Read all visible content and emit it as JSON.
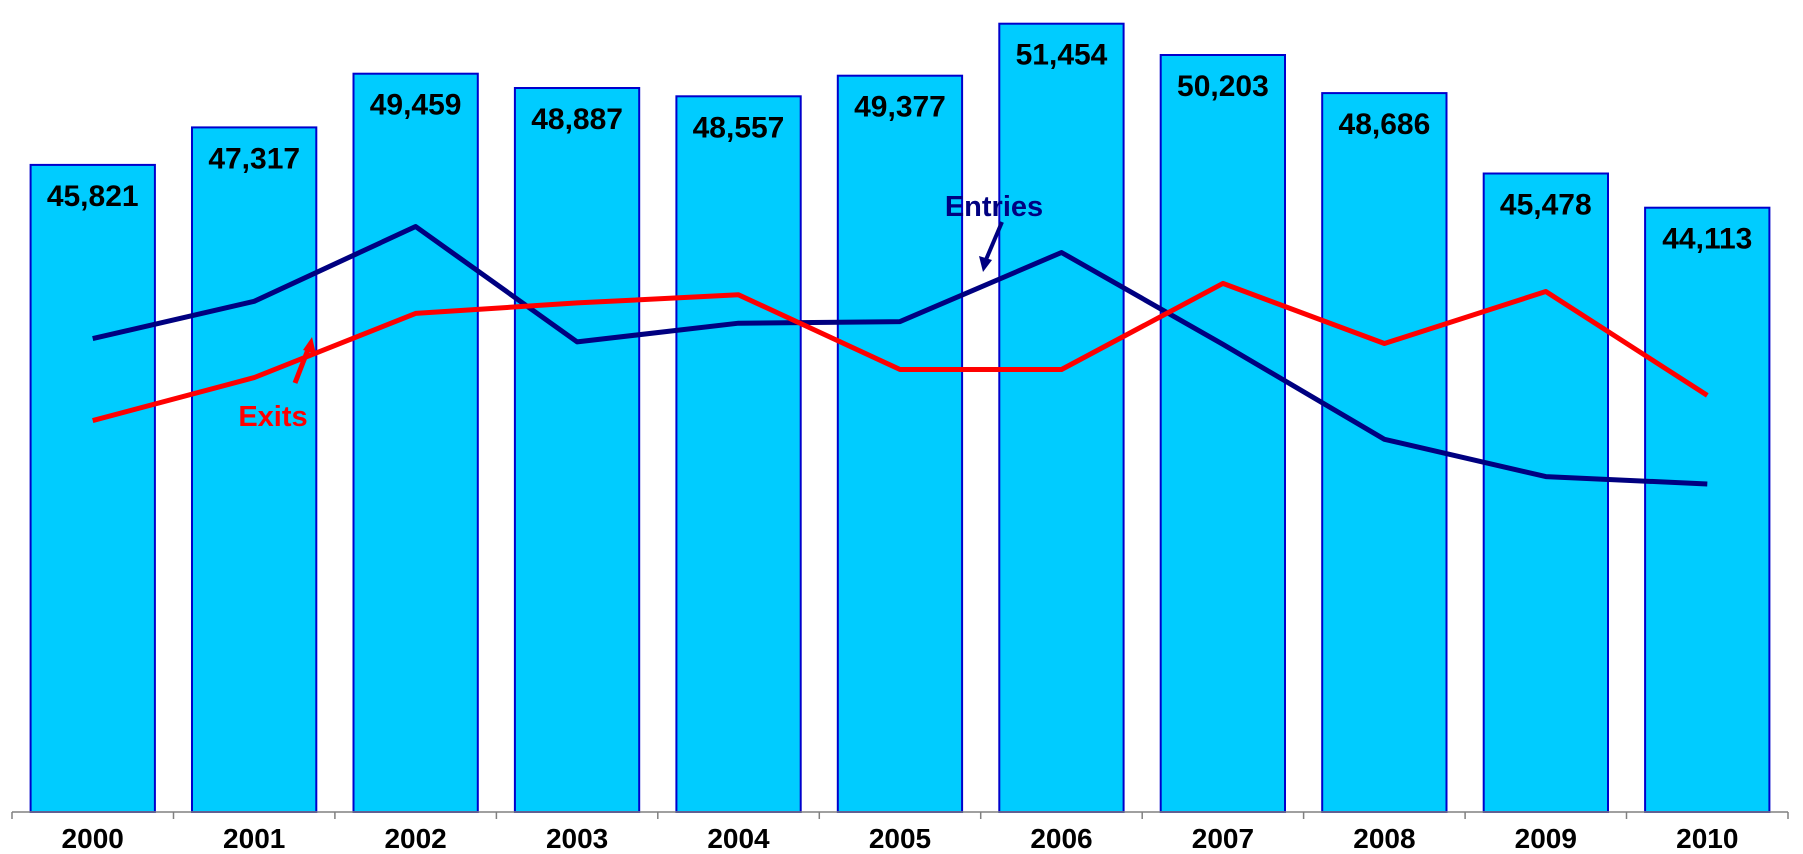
{
  "chart_data": {
    "type": "bar",
    "categories": [
      "2000",
      "2001",
      "2002",
      "2003",
      "2004",
      "2005",
      "2006",
      "2007",
      "2008",
      "2009",
      "2010"
    ],
    "values": [
      45821,
      47317,
      49459,
      48887,
      48557,
      49377,
      51454,
      50203,
      48686,
      45478,
      44113
    ],
    "value_labels": [
      "45,821",
      "47,317",
      "49,459",
      "48,887",
      "48,557",
      "49,377",
      "51,454",
      "50,203",
      "48,686",
      "45,478",
      "44,113"
    ],
    "ylim": [
      20000,
      52000
    ],
    "line_scale": {
      "min": 0,
      "max": 1
    },
    "lines": [
      {
        "name": "Entries",
        "color": "#000080",
        "values": [
          0.583,
          0.629,
          0.721,
          0.579,
          0.602,
          0.604,
          0.689,
          0.576,
          0.459,
          0.413,
          0.404
        ]
      },
      {
        "name": "Exits",
        "color": "#FF0000",
        "values": [
          0.482,
          0.535,
          0.614,
          0.627,
          0.637,
          0.545,
          0.545,
          0.651,
          0.577,
          0.641,
          0.513
        ]
      }
    ],
    "colors": {
      "bar_fill": "#00CCFF",
      "bar_stroke": "#0000CC"
    },
    "title": "",
    "xlabel": "",
    "ylabel": "",
    "grid": false,
    "legend": "none"
  }
}
